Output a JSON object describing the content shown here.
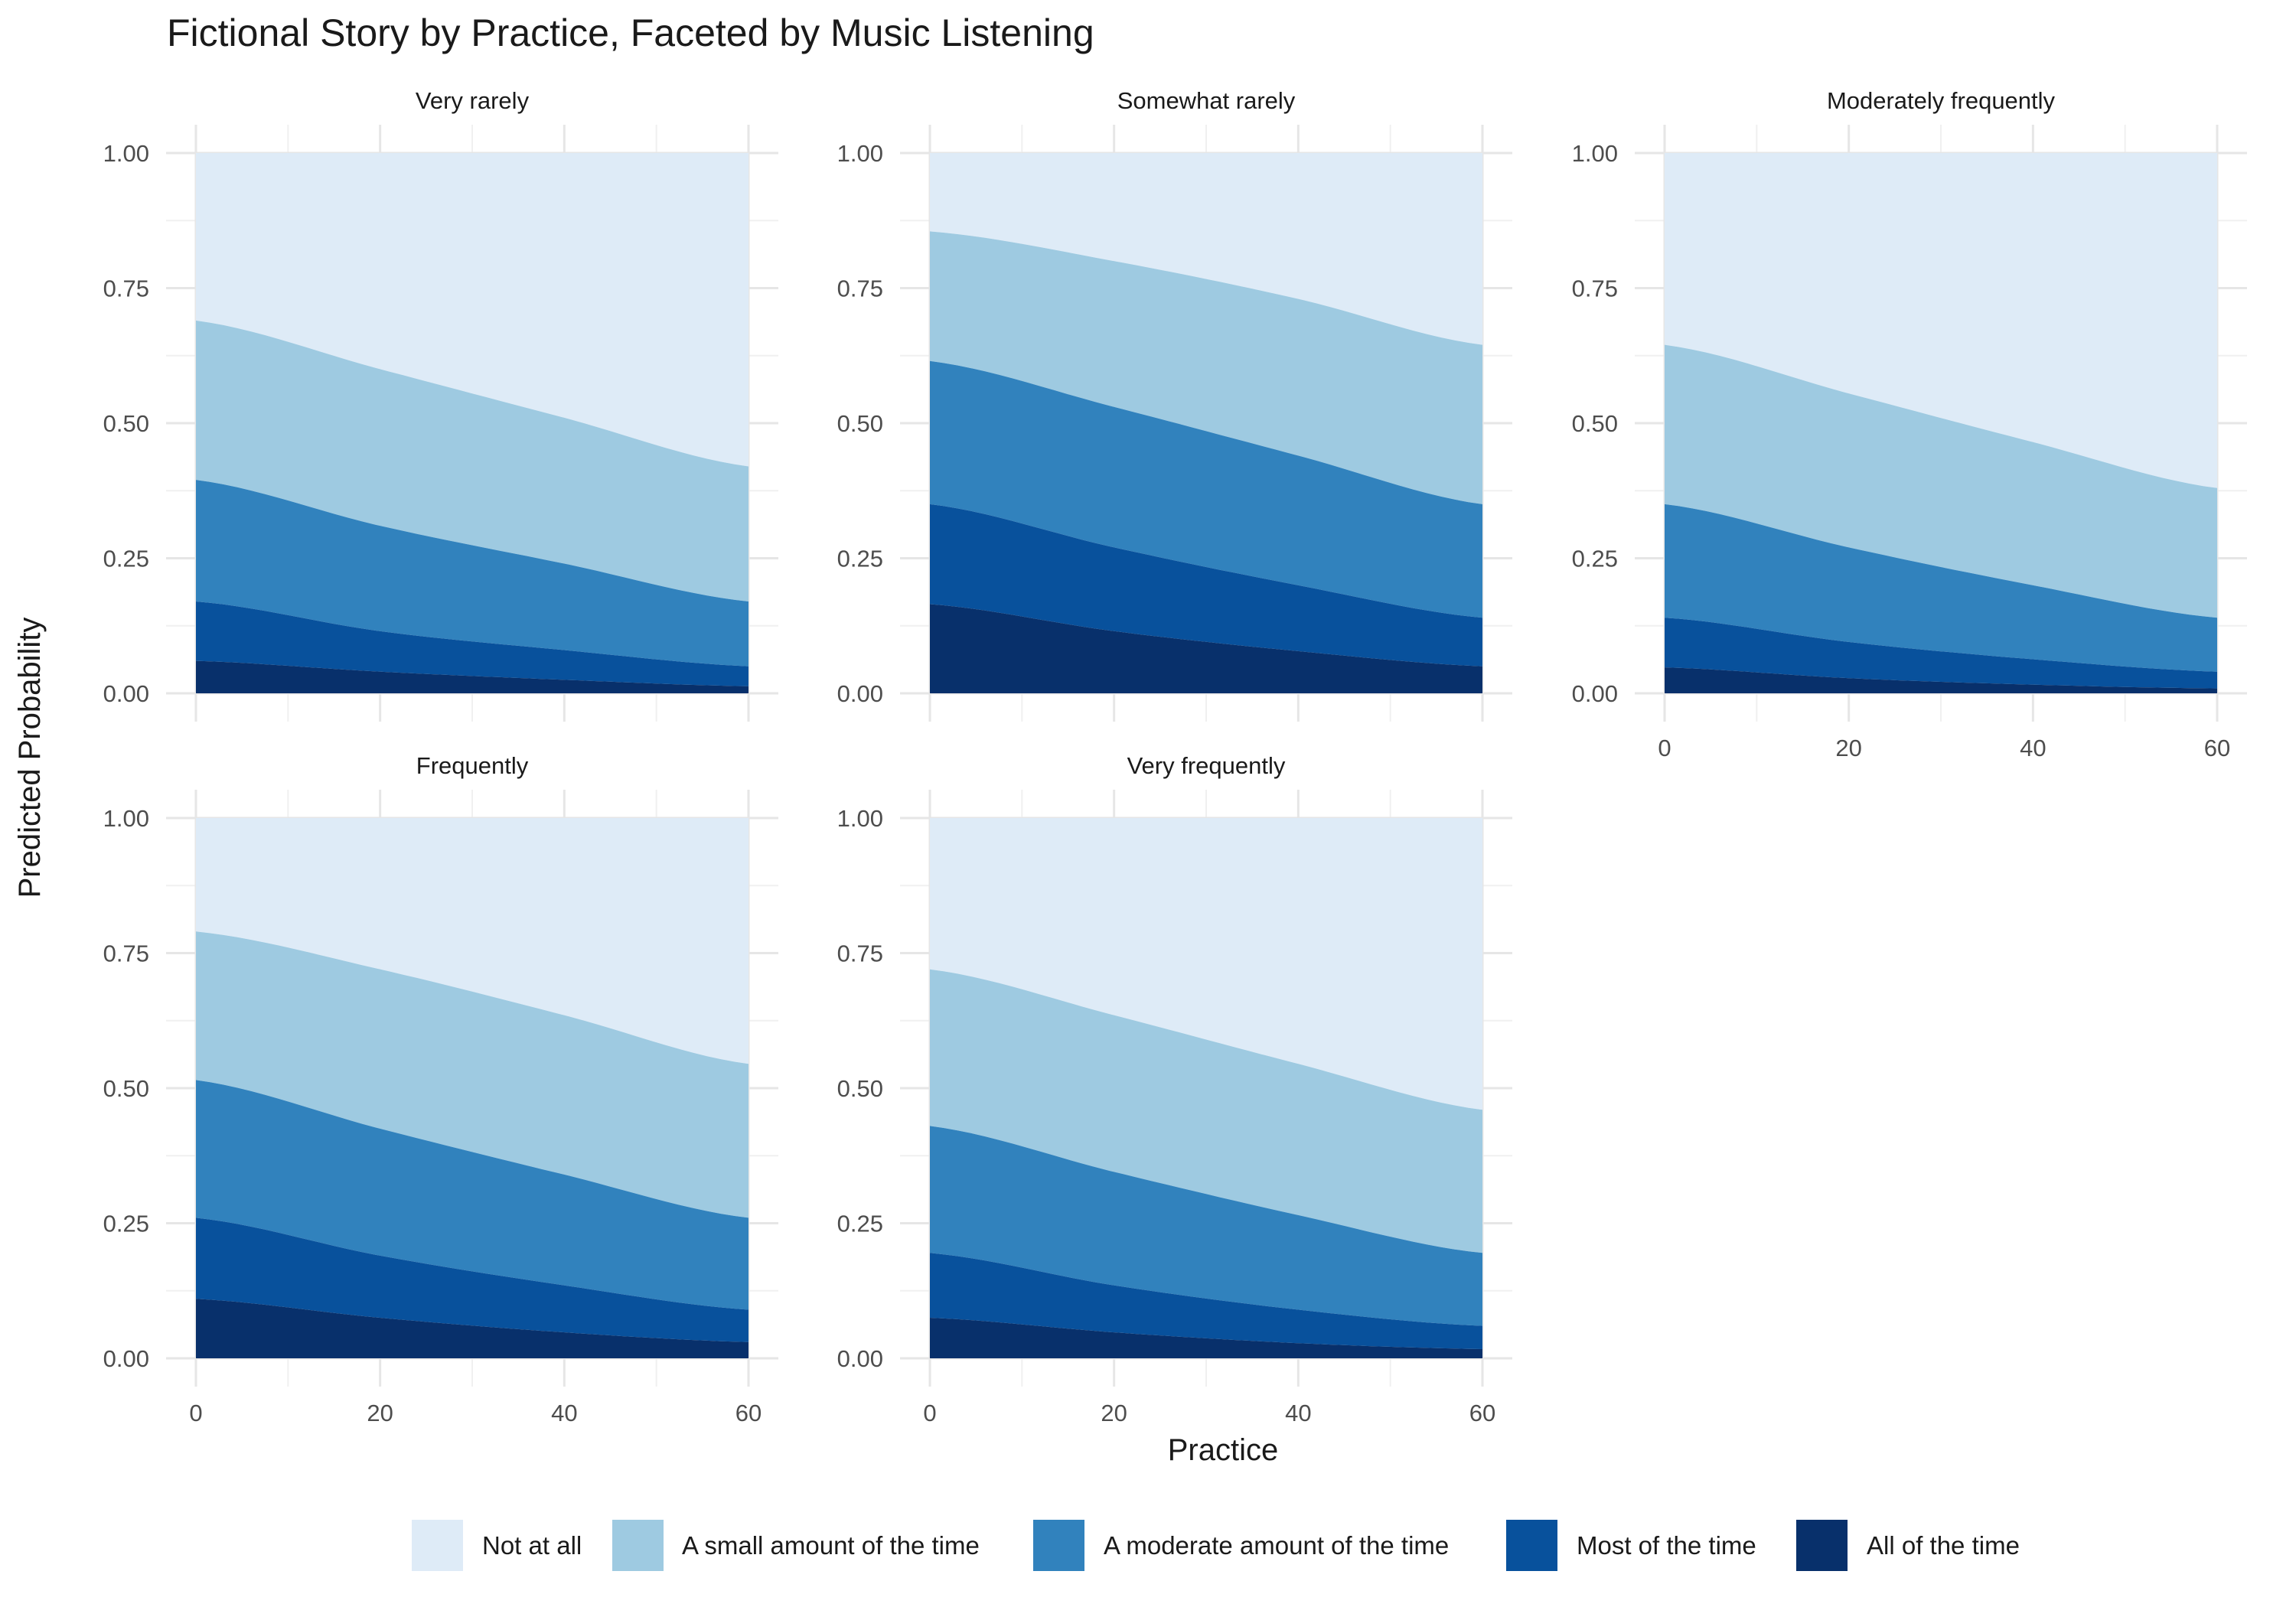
{
  "chart_data": {
    "type": "area",
    "stacked": true,
    "title": "Fictional Story by Practice, Faceted by Music Listening",
    "xlabel": "Practice",
    "ylabel": "Predicted Probability",
    "xlim": [
      0,
      60
    ],
    "ylim": [
      0,
      1
    ],
    "x_ticks": [
      0,
      20,
      40,
      60
    ],
    "y_ticks": [
      0,
      0.25,
      0.5,
      0.75,
      1
    ],
    "y_tick_labels": [
      "0.00",
      "0.25",
      "0.50",
      "0.75",
      "1.00"
    ],
    "grid": true,
    "legend_position": "bottom",
    "categories": [
      {
        "name": "Not at all",
        "color": "#deebf7"
      },
      {
        "name": "A small amount of the time",
        "color": "#9ecae1"
      },
      {
        "name": "A moderate amount of the time",
        "color": "#3182bd"
      },
      {
        "name": "Most of the time",
        "color": "#08519c"
      },
      {
        "name": "All of the time",
        "color": "#08306b"
      }
    ],
    "boundary_note_order": [
      "All of the time",
      "Most of the time",
      "A moderate amount of the time",
      "A small amount of the time"
    ],
    "facets": [
      {
        "label": "Very rarely",
        "x": [
          0,
          20,
          40,
          60
        ],
        "cumulative": [
          [
            0.06,
            0.04,
            0.025,
            0.013
          ],
          [
            0.17,
            0.115,
            0.08,
            0.05
          ],
          [
            0.395,
            0.31,
            0.24,
            0.17
          ],
          [
            0.69,
            0.6,
            0.51,
            0.42
          ]
        ]
      },
      {
        "label": "Somewhat rarely",
        "x": [
          0,
          20,
          40,
          60
        ],
        "cumulative": [
          [
            0.165,
            0.115,
            0.078,
            0.05
          ],
          [
            0.35,
            0.27,
            0.2,
            0.14
          ],
          [
            0.615,
            0.53,
            0.44,
            0.35
          ],
          [
            0.855,
            0.8,
            0.73,
            0.645
          ]
        ]
      },
      {
        "label": "Moderately frequently",
        "x": [
          0,
          20,
          40,
          60
        ],
        "cumulative": [
          [
            0.048,
            0.028,
            0.016,
            0.009
          ],
          [
            0.14,
            0.095,
            0.063,
            0.04
          ],
          [
            0.35,
            0.27,
            0.2,
            0.14
          ],
          [
            0.645,
            0.555,
            0.465,
            0.38
          ]
        ]
      },
      {
        "label": "Frequently",
        "x": [
          0,
          20,
          40,
          60
        ],
        "cumulative": [
          [
            0.11,
            0.075,
            0.048,
            0.03
          ],
          [
            0.26,
            0.19,
            0.135,
            0.09
          ],
          [
            0.515,
            0.425,
            0.34,
            0.26
          ],
          [
            0.79,
            0.72,
            0.635,
            0.545
          ]
        ]
      },
      {
        "label": "Very frequently",
        "x": [
          0,
          20,
          40,
          60
        ],
        "cumulative": [
          [
            0.075,
            0.048,
            0.028,
            0.017
          ],
          [
            0.195,
            0.135,
            0.09,
            0.06
          ],
          [
            0.43,
            0.345,
            0.265,
            0.195
          ],
          [
            0.72,
            0.635,
            0.545,
            0.46
          ]
        ]
      }
    ]
  }
}
